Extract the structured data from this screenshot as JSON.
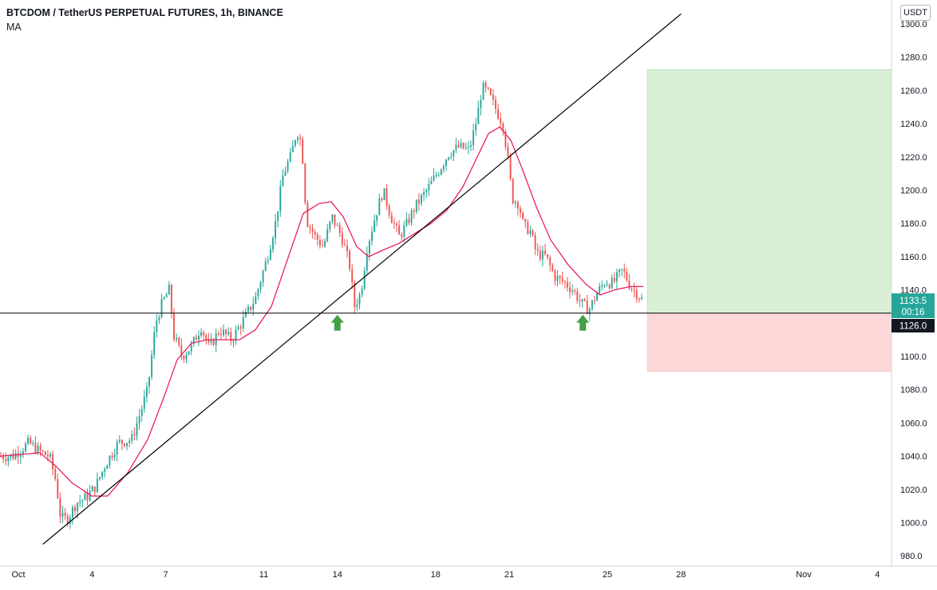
{
  "header": {
    "title": "BTCDOM / TetherUS PERPETUAL FUTURES, 1h, BINANCE",
    "indicator": "MA",
    "currency": "USDT"
  },
  "price_axis": {
    "ticks": [
      "1300.0",
      "1280.0",
      "1260.0",
      "1240.0",
      "1220.0",
      "1200.0",
      "1180.0",
      "1160.0",
      "1140.0",
      "1120.0",
      "1100.0",
      "1080.0",
      "1060.0",
      "1040.0",
      "1020.0",
      "1000.0",
      "980.0"
    ]
  },
  "time_axis": {
    "ticks": [
      "Oct",
      "4",
      "7",
      "11",
      "14",
      "18",
      "21",
      "25",
      "28",
      "Nov",
      "4"
    ]
  },
  "labels": {
    "last_price": "1133.5",
    "countdown": "00:16",
    "support_level": "1126.0"
  },
  "colors": {
    "up": "#26a69a",
    "down": "#ef5350",
    "ma": "#e91e63",
    "target_zone": "#d9f0d7",
    "stop_zone": "#fcd8d8",
    "arrow": "#43a047",
    "lines": "#000000"
  },
  "chart_data": {
    "type": "candlestick",
    "title": "BTCDOM / TetherUS PERPETUAL FUTURES, 1h, BINANCE",
    "ylim": [
      975,
      1305
    ],
    "y_ticks": [
      980,
      1000,
      1020,
      1040,
      1060,
      1080,
      1100,
      1120,
      1140,
      1160,
      1180,
      1200,
      1220,
      1240,
      1260,
      1280,
      1300
    ],
    "x_tick_labels": [
      "Oct",
      "4",
      "7",
      "11",
      "14",
      "18",
      "21",
      "25",
      "28",
      "Nov",
      "4"
    ],
    "price_path": [
      {
        "t": 0,
        "p": 1040
      },
      {
        "t": 16,
        "p": 1040
      },
      {
        "t": 36,
        "p": 1048
      },
      {
        "t": 52,
        "p": 1042
      },
      {
        "t": 62,
        "p": 1040
      },
      {
        "t": 70,
        "p": 1025
      },
      {
        "t": 76,
        "p": 1003
      },
      {
        "t": 84,
        "p": 1002
      },
      {
        "t": 96,
        "p": 1012
      },
      {
        "t": 108,
        "p": 1015
      },
      {
        "t": 120,
        "p": 1022
      },
      {
        "t": 132,
        "p": 1035
      },
      {
        "t": 148,
        "p": 1048
      },
      {
        "t": 165,
        "p": 1050
      },
      {
        "t": 175,
        "p": 1065
      },
      {
        "t": 185,
        "p": 1080
      },
      {
        "t": 195,
        "p": 1120
      },
      {
        "t": 203,
        "p": 1132
      },
      {
        "t": 212,
        "p": 1140
      },
      {
        "t": 218,
        "p": 1112
      },
      {
        "t": 228,
        "p": 1100
      },
      {
        "t": 240,
        "p": 1106
      },
      {
        "t": 252,
        "p": 1118
      },
      {
        "t": 262,
        "p": 1105
      },
      {
        "t": 275,
        "p": 1116
      },
      {
        "t": 290,
        "p": 1110
      },
      {
        "t": 305,
        "p": 1122
      },
      {
        "t": 320,
        "p": 1135
      },
      {
        "t": 335,
        "p": 1160
      },
      {
        "t": 345,
        "p": 1180
      },
      {
        "t": 355,
        "p": 1210
      },
      {
        "t": 364,
        "p": 1220
      },
      {
        "t": 372,
        "p": 1236
      },
      {
        "t": 378,
        "p": 1228
      },
      {
        "t": 384,
        "p": 1182
      },
      {
        "t": 395,
        "p": 1172
      },
      {
        "t": 405,
        "p": 1166
      },
      {
        "t": 416,
        "p": 1184
      },
      {
        "t": 428,
        "p": 1172
      },
      {
        "t": 438,
        "p": 1155
      },
      {
        "t": 444,
        "p": 1130
      },
      {
        "t": 452,
        "p": 1138
      },
      {
        "t": 460,
        "p": 1166
      },
      {
        "t": 470,
        "p": 1184
      },
      {
        "t": 480,
        "p": 1200
      },
      {
        "t": 490,
        "p": 1184
      },
      {
        "t": 500,
        "p": 1172
      },
      {
        "t": 510,
        "p": 1180
      },
      {
        "t": 520,
        "p": 1190
      },
      {
        "t": 535,
        "p": 1200
      },
      {
        "t": 550,
        "p": 1212
      },
      {
        "t": 562,
        "p": 1222
      },
      {
        "t": 575,
        "p": 1226
      },
      {
        "t": 588,
        "p": 1224
      },
      {
        "t": 598,
        "p": 1244
      },
      {
        "t": 604,
        "p": 1262
      },
      {
        "t": 612,
        "p": 1258
      },
      {
        "t": 620,
        "p": 1250
      },
      {
        "t": 630,
        "p": 1240
      },
      {
        "t": 636,
        "p": 1220
      },
      {
        "t": 642,
        "p": 1195
      },
      {
        "t": 650,
        "p": 1192
      },
      {
        "t": 656,
        "p": 1178
      },
      {
        "t": 664,
        "p": 1176
      },
      {
        "t": 672,
        "p": 1162
      },
      {
        "t": 684,
        "p": 1160
      },
      {
        "t": 695,
        "p": 1148
      },
      {
        "t": 708,
        "p": 1144
      },
      {
        "t": 718,
        "p": 1140
      },
      {
        "t": 728,
        "p": 1132
      },
      {
        "t": 738,
        "p": 1128
      },
      {
        "t": 748,
        "p": 1138
      },
      {
        "t": 758,
        "p": 1145
      },
      {
        "t": 768,
        "p": 1144
      },
      {
        "t": 780,
        "p": 1152
      },
      {
        "t": 790,
        "p": 1142
      },
      {
        "t": 798,
        "p": 1138
      },
      {
        "t": 806,
        "p": 1133
      }
    ],
    "moving_average": [
      {
        "t": 0,
        "p": 1040
      },
      {
        "t": 50,
        "p": 1042
      },
      {
        "t": 70,
        "p": 1034
      },
      {
        "t": 90,
        "p": 1024
      },
      {
        "t": 115,
        "p": 1016
      },
      {
        "t": 135,
        "p": 1016
      },
      {
        "t": 160,
        "p": 1030
      },
      {
        "t": 185,
        "p": 1050
      },
      {
        "t": 205,
        "p": 1075
      },
      {
        "t": 222,
        "p": 1098
      },
      {
        "t": 240,
        "p": 1108
      },
      {
        "t": 260,
        "p": 1110
      },
      {
        "t": 280,
        "p": 1110
      },
      {
        "t": 300,
        "p": 1110
      },
      {
        "t": 320,
        "p": 1116
      },
      {
        "t": 340,
        "p": 1130
      },
      {
        "t": 360,
        "p": 1158
      },
      {
        "t": 380,
        "p": 1186
      },
      {
        "t": 400,
        "p": 1192
      },
      {
        "t": 415,
        "p": 1193
      },
      {
        "t": 430,
        "p": 1184
      },
      {
        "t": 447,
        "p": 1166
      },
      {
        "t": 462,
        "p": 1160
      },
      {
        "t": 480,
        "p": 1164
      },
      {
        "t": 500,
        "p": 1168
      },
      {
        "t": 520,
        "p": 1174
      },
      {
        "t": 540,
        "p": 1180
      },
      {
        "t": 560,
        "p": 1188
      },
      {
        "t": 580,
        "p": 1202
      },
      {
        "t": 600,
        "p": 1222
      },
      {
        "t": 612,
        "p": 1234
      },
      {
        "t": 626,
        "p": 1238
      },
      {
        "t": 640,
        "p": 1230
      },
      {
        "t": 655,
        "p": 1212
      },
      {
        "t": 672,
        "p": 1190
      },
      {
        "t": 690,
        "p": 1170
      },
      {
        "t": 712,
        "p": 1155
      },
      {
        "t": 735,
        "p": 1143
      },
      {
        "t": 752,
        "p": 1137
      },
      {
        "t": 770,
        "p": 1140
      },
      {
        "t": 790,
        "p": 1142
      },
      {
        "t": 806,
        "p": 1142
      }
    ],
    "horizontal_level": 1126,
    "trendline": {
      "start_date": "Oct 2",
      "start_price": 987,
      "end_date": "Oct 28",
      "end_price": 1306
    },
    "position": {
      "entry": 1126,
      "target": 1272.5,
      "stop": 1091
    },
    "markers": [
      {
        "date": "Oct 14",
        "price": 1126
      },
      {
        "date": "Oct 24",
        "price": 1126
      }
    ],
    "last_price": 1133.5
  }
}
